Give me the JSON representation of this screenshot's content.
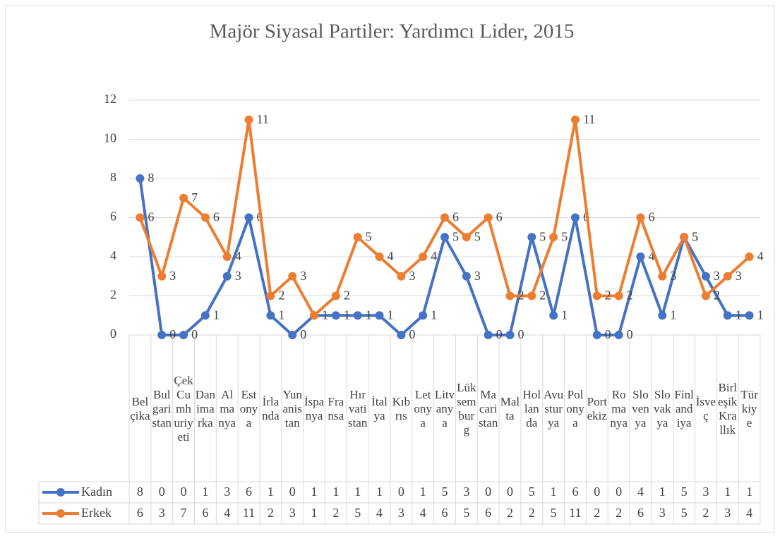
{
  "chart_data": {
    "type": "line",
    "title": "Majör Siyasal Partiler: Yardımcı Lider,  2015",
    "categories": [
      "Belçika",
      "Bulgaristan",
      "Çek Cumhuriyeti",
      "Danimarka",
      "Almanya",
      "Estonya",
      "İrlanda",
      "Yunanistan",
      "İspanya",
      "Fransa",
      "Hırvatistan",
      "İtalya",
      "Kıbrıs",
      "Letonya",
      "Litvanya",
      "Lüksemburg",
      "Macaristan",
      "Malta",
      "Hollanda",
      "Avusturya",
      "Polonya",
      "Portekiz",
      "Romanya",
      "Slovenya",
      "Slovakya",
      "Finlandiya",
      "İsveç",
      "Birleşik Krallık",
      "Türkiye"
    ],
    "series": [
      {
        "name": "Kadın",
        "color": "#4472c4",
        "values": [
          8,
          0,
          0,
          1,
          3,
          6,
          1,
          0,
          1,
          1,
          1,
          1,
          0,
          1,
          5,
          3,
          0,
          0,
          5,
          1,
          6,
          0,
          0,
          4,
          1,
          5,
          3,
          1,
          1
        ]
      },
      {
        "name": "Erkek",
        "color": "#ed7d31",
        "values": [
          6,
          3,
          7,
          6,
          4,
          11,
          2,
          3,
          1,
          2,
          5,
          4,
          3,
          4,
          6,
          5,
          6,
          2,
          2,
          5,
          11,
          2,
          2,
          6,
          3,
          5,
          2,
          3,
          4
        ]
      }
    ],
    "ylim": [
      0,
      12
    ],
    "yticks": [
      0,
      2,
      4,
      6,
      8,
      10,
      12
    ],
    "grid": true
  }
}
